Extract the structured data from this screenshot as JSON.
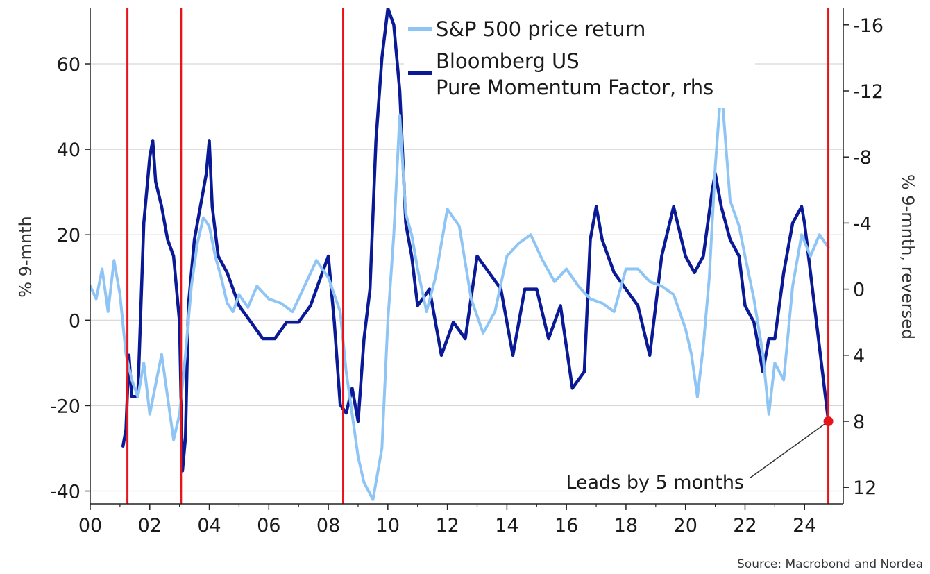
{
  "chart_data": {
    "type": "line",
    "title": "",
    "xlabel": "",
    "ylabel": "% 9-mnth",
    "ylabel_right": "% 9-mnth, reversed",
    "xlim": [
      0,
      25.3
    ],
    "ylim": [
      -43,
      73
    ],
    "ylim_right": [
      -17,
      13
    ],
    "right_axis_reversed": true,
    "grid": true,
    "legend_position": "top-center",
    "x_ticks": [
      0,
      2,
      4,
      6,
      8,
      10,
      12,
      14,
      16,
      18,
      20,
      22,
      24
    ],
    "x_tick_labels": [
      "00",
      "02",
      "04",
      "06",
      "08",
      "10",
      "12",
      "14",
      "16",
      "18",
      "20",
      "22",
      "24"
    ],
    "y_ticks": [
      -40,
      -20,
      0,
      20,
      40,
      60
    ],
    "y_tick_labels": [
      "-40",
      "-20",
      "0",
      "20",
      "40",
      "60"
    ],
    "y_ticks_right": [
      -16,
      -12,
      -8,
      -4,
      0,
      4,
      8,
      12
    ],
    "y_tick_labels_right": [
      "-16",
      "-12",
      "-8",
      "-4",
      "0",
      "4",
      "8",
      "12"
    ],
    "vlines": [
      1.25,
      3.05,
      8.5,
      24.8
    ],
    "series": [
      {
        "name": "S&P 500 price return",
        "axis": "left",
        "color": "#8ec5f5",
        "x": [
          0.0,
          0.2,
          0.4,
          0.6,
          0.8,
          1.0,
          1.2,
          1.4,
          1.6,
          1.8,
          2.0,
          2.2,
          2.4,
          2.6,
          2.8,
          3.0,
          3.2,
          3.4,
          3.6,
          3.8,
          4.0,
          4.2,
          4.4,
          4.6,
          4.8,
          5.0,
          5.3,
          5.6,
          6.0,
          6.4,
          6.8,
          7.2,
          7.6,
          8.0,
          8.4,
          8.6,
          8.8,
          9.0,
          9.2,
          9.5,
          9.8,
          10.0,
          10.2,
          10.4,
          10.6,
          10.8,
          11.0,
          11.3,
          11.6,
          12.0,
          12.4,
          12.8,
          13.2,
          13.6,
          14.0,
          14.4,
          14.8,
          15.2,
          15.6,
          16.0,
          16.4,
          16.8,
          17.2,
          17.6,
          18.0,
          18.4,
          18.8,
          19.2,
          19.6,
          20.0,
          20.2,
          20.4,
          20.6,
          20.8,
          21.0,
          21.2,
          21.5,
          21.8,
          22.0,
          22.3,
          22.6,
          22.8,
          23.0,
          23.3,
          23.6,
          23.9,
          24.2,
          24.5,
          24.8
        ],
        "values": [
          8,
          5,
          12,
          2,
          14,
          6,
          -8,
          -14,
          -18,
          -10,
          -22,
          -15,
          -8,
          -18,
          -28,
          -22,
          -8,
          8,
          18,
          24,
          22,
          15,
          10,
          4,
          2,
          6,
          3,
          8,
          5,
          4,
          2,
          8,
          14,
          10,
          2,
          -12,
          -22,
          -32,
          -38,
          -42,
          -30,
          0,
          20,
          48,
          25,
          20,
          12,
          2,
          10,
          26,
          22,
          5,
          -3,
          2,
          15,
          18,
          20,
          14,
          9,
          12,
          8,
          5,
          4,
          2,
          12,
          12,
          9,
          8,
          6,
          -2,
          -8,
          -18,
          -6,
          10,
          36,
          55,
          28,
          22,
          15,
          5,
          -8,
          -22,
          -10,
          -14,
          8,
          20,
          15,
          20,
          17
        ]
      },
      {
        "name": "Bloomberg US\nPure Momentum Factor, rhs",
        "axis": "right",
        "color": "#0a1a96",
        "x": [
          1.1,
          1.2,
          1.3,
          1.4,
          1.6,
          1.8,
          1.9,
          2.0,
          2.1,
          2.2,
          2.4,
          2.6,
          2.8,
          2.9,
          3.0,
          3.1,
          3.2,
          3.3,
          3.5,
          3.7,
          3.9,
          4.0,
          4.1,
          4.3,
          4.6,
          5.0,
          5.4,
          5.8,
          6.2,
          6.6,
          7.0,
          7.4,
          7.8,
          8.0,
          8.2,
          8.4,
          8.6,
          8.8,
          9.0,
          9.2,
          9.4,
          9.6,
          9.8,
          10.0,
          10.2,
          10.4,
          10.6,
          10.8,
          11.0,
          11.4,
          11.8,
          12.2,
          12.6,
          13.0,
          13.4,
          13.8,
          14.2,
          14.6,
          15.0,
          15.4,
          15.8,
          16.2,
          16.6,
          16.8,
          17.0,
          17.2,
          17.6,
          18.0,
          18.4,
          18.8,
          19.2,
          19.6,
          20.0,
          20.3,
          20.6,
          20.9,
          21.0,
          21.2,
          21.5,
          21.8,
          22.0,
          22.3,
          22.6,
          22.8,
          23.0,
          23.3,
          23.6,
          23.9,
          24.0,
          24.2,
          24.4,
          24.6,
          24.8
        ],
        "values": [
          9.5,
          8.5,
          4,
          6.5,
          6.5,
          -4,
          -6,
          -8,
          -9,
          -6.5,
          -5,
          -3,
          -2,
          0,
          2,
          11,
          9,
          1,
          -3,
          -5,
          -7,
          -9,
          -5,
          -2,
          -1,
          1,
          2,
          3,
          3,
          2,
          2,
          1,
          -1,
          -2,
          2,
          7,
          7.5,
          6,
          8,
          3,
          0,
          -9,
          -14,
          -17,
          -16,
          -12,
          -4,
          -2,
          1,
          0,
          4,
          2,
          3,
          -2,
          -1,
          0,
          4,
          0,
          0,
          3,
          1,
          6,
          5,
          -3,
          -5,
          -3,
          -1,
          0,
          1,
          4,
          -2,
          -5,
          -2,
          -1,
          -2,
          -6,
          -7,
          -5,
          -3,
          -2,
          1,
          2,
          5,
          3,
          3,
          -1,
          -4,
          -5,
          -4,
          -1,
          2,
          5,
          8
        ]
      }
    ],
    "marker": {
      "x": 24.8,
      "value": 8,
      "axis": "right",
      "color": "#e8141a"
    },
    "annotations": [
      {
        "text": "Leads by 5 months"
      }
    ],
    "source": "Source: Macrobond and Nordea",
    "vline_color": "#e8141a",
    "grid_color": "#d6d6d6"
  }
}
